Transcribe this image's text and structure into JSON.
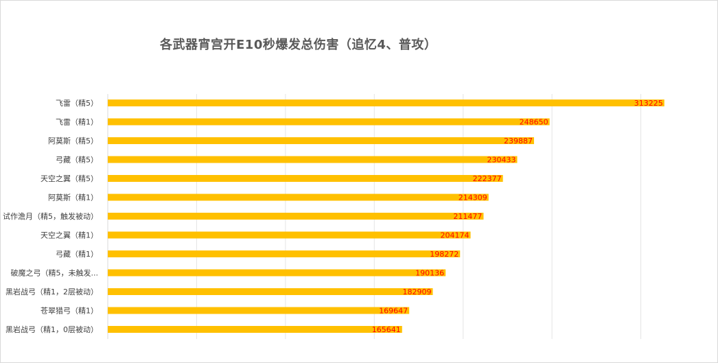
{
  "chart_data": {
    "type": "bar",
    "orientation": "horizontal",
    "title": "各武器宵宫开E10秒爆发总伤害（追忆4、普攻）",
    "categories": [
      "飞雷（精5）",
      "飞雷（精1）",
      "阿莫斯（精5）",
      "弓藏（精5）",
      "天空之翼（精5）",
      "阿莫斯（精1）",
      "试作澹月（精5，触发被动）",
      "天空之翼（精1）",
      "弓藏（精1）",
      "破魔之弓（精5，未触发...",
      "黑岩战弓（精1，2层被动）",
      "苍翠猎弓（精1）",
      "黑岩战弓（精1，0层被动）"
    ],
    "values": [
      313225,
      248650,
      239887,
      230433,
      222377,
      214309,
      211477,
      204174,
      198272,
      190136,
      182909,
      169647,
      165641
    ],
    "xlim": [
      0,
      350000
    ],
    "grid": true,
    "legend": "none",
    "colors": {
      "bar": "#FFC000",
      "label": "#FF0000",
      "category_text": "#404040",
      "grid": "#e4e4e4",
      "title": "#595959"
    }
  }
}
